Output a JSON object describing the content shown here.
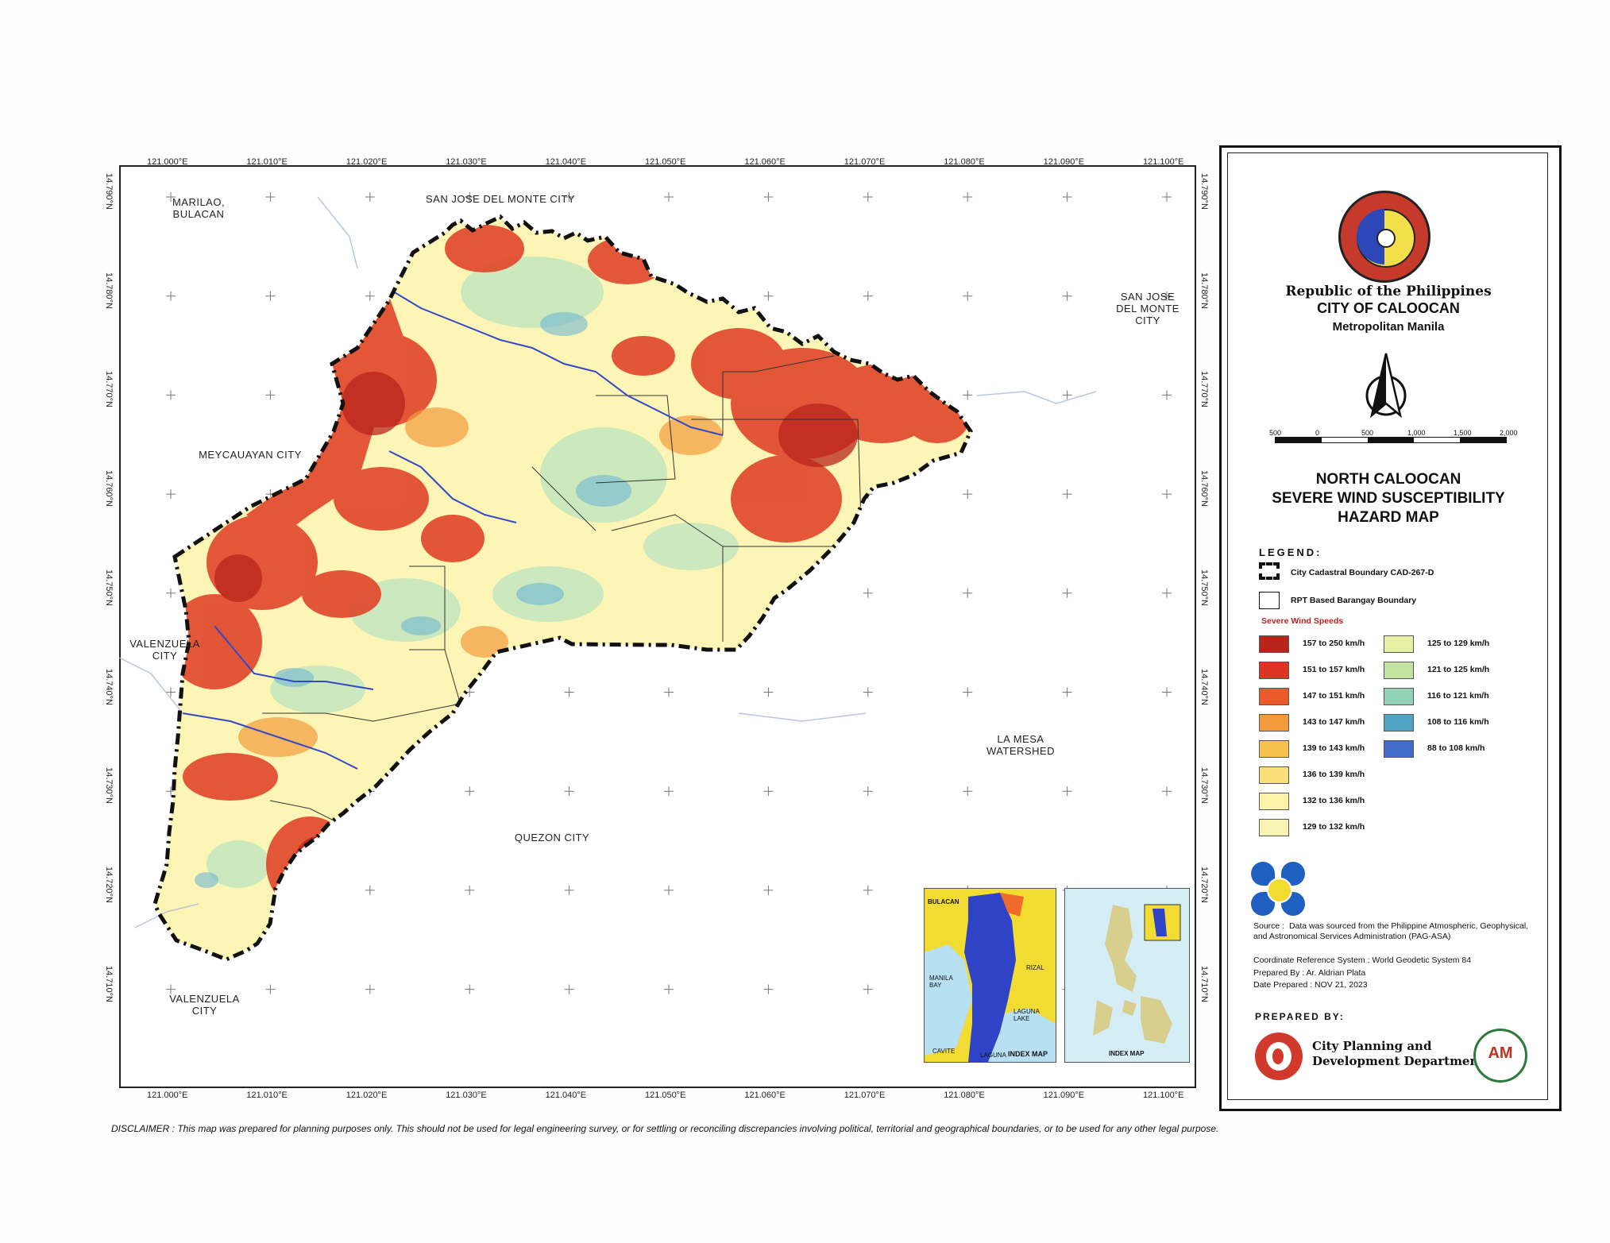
{
  "map": {
    "x_ticks": [
      "121.000°E",
      "121.010°E",
      "121.020°E",
      "121.030°E",
      "121.040°E",
      "121.050°E",
      "121.060°E",
      "121.070°E",
      "121.080°E",
      "121.090°E",
      "121.100°E"
    ],
    "y_ticks": [
      "14.790°N",
      "14.780°N",
      "14.770°N",
      "14.760°N",
      "14.750°N",
      "14.740°N",
      "14.730°N",
      "14.720°N",
      "14.710°N"
    ],
    "places": {
      "marilao": "MARILAO,\nBULACAN",
      "sjdm_top": "SAN JOSE DEL MONTE CITY",
      "sjdm_right": "SAN JOSE\nDEL MONTE\nCITY",
      "meycauayan": "MEYCAUAYAN CITY",
      "valenzuela1": "VALENZUELA\nCITY",
      "valenzuela2": "VALENZUELA\nCITY",
      "lamesa": "LA MESA\nWATERSHED",
      "quezon": "QUEZON CITY"
    },
    "index_map_label_1": "INDEX MAP",
    "index_map_label_2": "INDEX MAP",
    "index_places": [
      "BULACAN",
      "MANILA\nBAY",
      "RIZAL",
      "LAGUNA\nLAKE",
      "CAVITE",
      "LAGUNA"
    ]
  },
  "panel": {
    "republic": "Republic of the Philippines",
    "city": "CITY OF CALOOCAN",
    "metro": "Metropolitan Manila",
    "seal_text": "PAMAHALAANG LUNGSOD NG CALOOCAN",
    "scale": [
      "500",
      "0",
      "500",
      "1,000",
      "1,500",
      "2,000"
    ],
    "title_lines": [
      "NORTH CALOOCAN",
      "SEVERE WIND SUSCEPTIBILITY",
      "HAZARD MAP"
    ],
    "legend_heading": "LEGEND:",
    "boundary_1": "City Cadastral Boundary CAD-267-D",
    "boundary_2": "RPT Based Barangay Boundary",
    "wind_heading": "Severe Wind Speeds",
    "wind_classes_left": [
      {
        "label": "157 to 250 km/h",
        "color": "#b8231b"
      },
      {
        "label": "151 to 157 km/h",
        "color": "#dc3322"
      },
      {
        "label": "147 to 151 km/h",
        "color": "#ea5a2a"
      },
      {
        "label": "143 to 147 km/h",
        "color": "#f39a3c"
      },
      {
        "label": "139 to 143 km/h",
        "color": "#f7c04f"
      },
      {
        "label": "136 to 139 km/h",
        "color": "#fbe07a"
      },
      {
        "label": "132 to 136 km/h",
        "color": "#fdf3a8"
      },
      {
        "label": "129 to 132 km/h",
        "color": "#f7f3b2"
      }
    ],
    "wind_classes_right": [
      {
        "label": "125 to 129 km/h",
        "color": "#e6f0a5"
      },
      {
        "label": "121 to 125 km/h",
        "color": "#c3e3a0"
      },
      {
        "label": "116 to 121 km/h",
        "color": "#93d2b4"
      },
      {
        "label": "108 to 116 km/h",
        "color": "#4fa3c4"
      },
      {
        "label": "88 to 108 km/h",
        "color": "#3f6cc8"
      }
    ],
    "source": "Source :  Data was sourced from the Philippine Atmospheric, Geophysical,\nand Astronomical Services Administration (PAG-ASA)",
    "crs": "Coordinate Reference System : World Geodetic System 84",
    "prepared_by_name": "Prepared By : Ar. Aldrian Plata",
    "date": "Date Prepared : NOV 21, 2023",
    "prepared_heading": "PREPARED BY:",
    "dept": "City Planning and\nDevelopment Department",
    "am_logo": "AM"
  },
  "disclaimer": "DISCLAIMER : This map was prepared for planning purposes only. This should not be used for legal engineering survey, or for settling or reconciling discrepancies involving political, territorial and geographical boundaries, or to be used for any other legal purpose."
}
